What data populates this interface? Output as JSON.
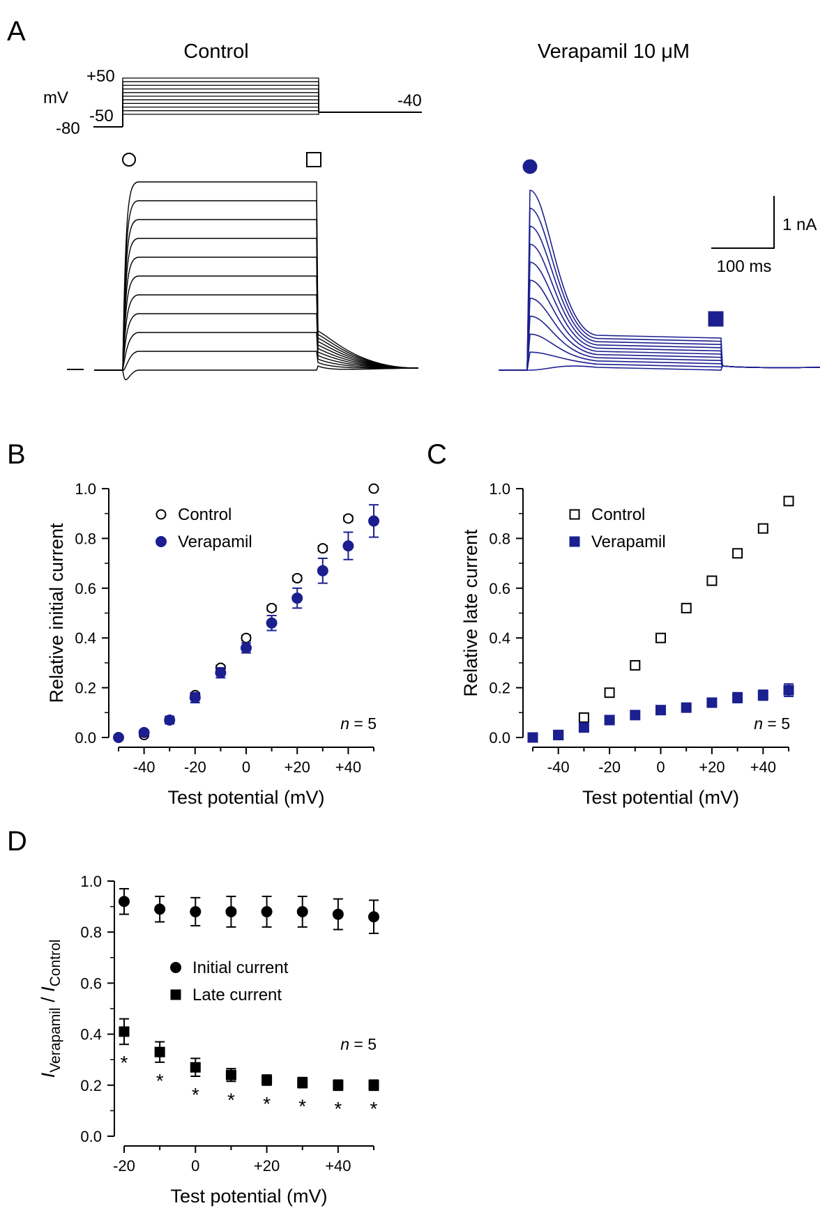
{
  "colors": {
    "control": "#000000",
    "verapamil": "#1b1f8f"
  },
  "panel_a": {
    "label": "A",
    "control_title": "Control",
    "verapamil_title": "Verapamil 10 μM",
    "protocol": {
      "unit": "mV",
      "top": "+50",
      "bottom_step": "-50",
      "hold": "-80",
      "tail": "-40"
    },
    "scale_bar": {
      "y_label": "1 nA",
      "x_label": "100 ms"
    }
  },
  "chart_data": [
    {
      "panel": "B",
      "type": "scatter",
      "xlabel": "Test potential (mV)",
      "ylabel": "Relative initial current",
      "xlim": [
        -50,
        50
      ],
      "ylim": [
        0,
        1.0
      ],
      "xticks": [
        -40,
        -20,
        0,
        20,
        40
      ],
      "xtick_labels": [
        "-40",
        "-20",
        "0",
        "+20",
        "+40"
      ],
      "yticks": [
        0.0,
        0.2,
        0.4,
        0.6,
        0.8,
        1.0
      ],
      "ytick_labels": [
        "0.0",
        "0.2",
        "0.4",
        "0.6",
        "0.8",
        "1.0"
      ],
      "annotation": "n = 5",
      "x": [
        -50,
        -40,
        -30,
        -20,
        -10,
        0,
        10,
        20,
        30,
        40,
        50
      ],
      "series": [
        {
          "name": "Control",
          "marker": "open-circle",
          "values": [
            0.0,
            0.01,
            0.07,
            0.17,
            0.28,
            0.4,
            0.52,
            0.64,
            0.76,
            0.88,
            1.0
          ],
          "errors": [
            0.005,
            0.005,
            0.01,
            0.01,
            0.01,
            0.01,
            0.01,
            0.01,
            0.01,
            0.01,
            0.005
          ]
        },
        {
          "name": "Verapamil",
          "marker": "filled-circle",
          "values": [
            0.0,
            0.02,
            0.07,
            0.16,
            0.26,
            0.36,
            0.46,
            0.56,
            0.67,
            0.77,
            0.87
          ],
          "errors": [
            0.005,
            0.01,
            0.015,
            0.02,
            0.02,
            0.02,
            0.03,
            0.04,
            0.05,
            0.055,
            0.065
          ]
        }
      ]
    },
    {
      "panel": "C",
      "type": "scatter",
      "xlabel": "Test potential (mV)",
      "ylabel": "Relative late current",
      "xlim": [
        -50,
        50
      ],
      "ylim": [
        0,
        1.0
      ],
      "xticks": [
        -40,
        -20,
        0,
        20,
        40
      ],
      "xtick_labels": [
        "-40",
        "-20",
        "0",
        "+20",
        "+40"
      ],
      "yticks": [
        0.0,
        0.2,
        0.4,
        0.6,
        0.8,
        1.0
      ],
      "ytick_labels": [
        "0.0",
        "0.2",
        "0.4",
        "0.6",
        "0.8",
        "1.0"
      ],
      "annotation": "n = 5",
      "x": [
        -50,
        -40,
        -30,
        -20,
        -10,
        0,
        10,
        20,
        30,
        40,
        50
      ],
      "series": [
        {
          "name": "Control",
          "marker": "open-square",
          "values": [
            0.0,
            0.01,
            0.08,
            0.18,
            0.29,
            0.4,
            0.52,
            0.63,
            0.74,
            0.84,
            0.95
          ],
          "errors": [
            0.005,
            0.005,
            0.01,
            0.01,
            0.01,
            0.01,
            0.01,
            0.01,
            0.01,
            0.01,
            0.015
          ]
        },
        {
          "name": "Verapamil",
          "marker": "filled-square",
          "values": [
            0.0,
            0.01,
            0.04,
            0.07,
            0.09,
            0.11,
            0.12,
            0.14,
            0.16,
            0.17,
            0.19
          ],
          "errors": [
            0.005,
            0.005,
            0.01,
            0.01,
            0.01,
            0.01,
            0.015,
            0.015,
            0.02,
            0.02,
            0.025
          ]
        }
      ]
    },
    {
      "panel": "D",
      "type": "scatter",
      "xlabel": "Test potential (mV)",
      "ylabel": "I Verapamil / I Control",
      "xlim": [
        -20,
        50
      ],
      "ylim": [
        0,
        1.0
      ],
      "xticks": [
        -20,
        0,
        20,
        40
      ],
      "xtick_labels": [
        "-20",
        "0",
        "+20",
        "+40"
      ],
      "yticks": [
        0.0,
        0.2,
        0.4,
        0.6,
        0.8,
        1.0
      ],
      "ytick_labels": [
        "0.0",
        "0.2",
        "0.4",
        "0.6",
        "0.8",
        "1.0"
      ],
      "annotation": "n = 5",
      "significance_marker": "*",
      "x": [
        -20,
        -10,
        0,
        10,
        20,
        30,
        40,
        50
      ],
      "series": [
        {
          "name": "Initial current",
          "marker": "filled-circle",
          "values": [
            0.92,
            0.89,
            0.88,
            0.88,
            0.88,
            0.88,
            0.87,
            0.86
          ],
          "errors": [
            0.05,
            0.05,
            0.055,
            0.06,
            0.06,
            0.06,
            0.06,
            0.065
          ]
        },
        {
          "name": "Late current",
          "marker": "filled-square",
          "values": [
            0.41,
            0.33,
            0.27,
            0.24,
            0.22,
            0.21,
            0.2,
            0.2
          ],
          "errors": [
            0.05,
            0.04,
            0.035,
            0.025,
            0.02,
            0.02,
            0.02,
            0.02
          ]
        }
      ]
    }
  ]
}
